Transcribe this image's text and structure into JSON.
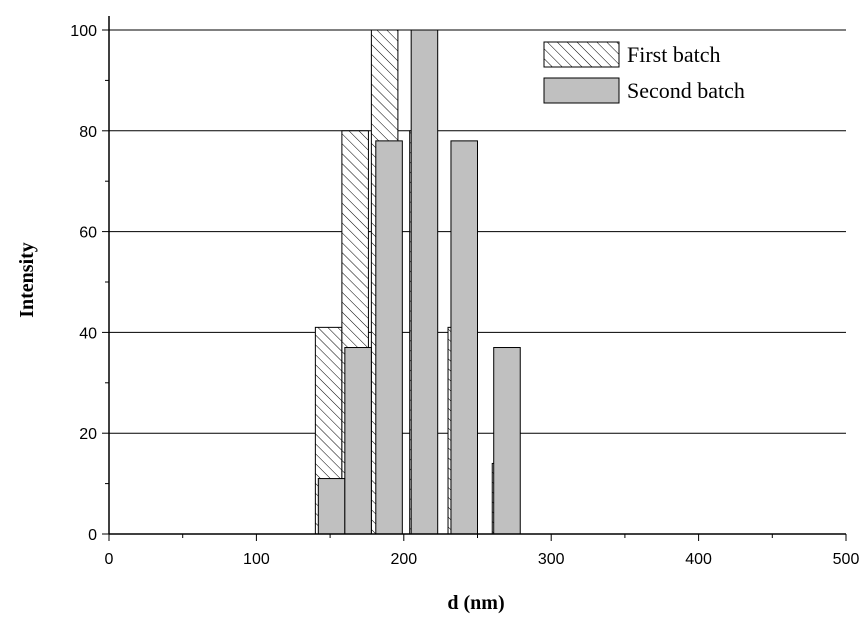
{
  "chart_data": {
    "type": "bar",
    "xlabel": "d (nm)",
    "ylabel": "Intensity",
    "xlim": [
      0,
      500
    ],
    "ylim": [
      0,
      100
    ],
    "x_ticks": [
      "0",
      "100",
      "200",
      "300",
      "400",
      "500"
    ],
    "y_ticks": [
      "0",
      "20",
      "40",
      "60",
      "80",
      "100"
    ],
    "grid": "horizontal",
    "legend_position": "top-right",
    "series": [
      {
        "name": "First batch",
        "pattern": "diagonal-hatch",
        "x_ranges": [
          [
            140,
            158
          ],
          [
            158,
            176
          ],
          [
            178,
            196
          ],
          [
            204,
            222
          ],
          [
            230,
            248
          ],
          [
            260,
            278
          ]
        ],
        "values": [
          41,
          80,
          100,
          80,
          41,
          14
        ]
      },
      {
        "name": "Second batch",
        "fill_color": "#c0c0c0",
        "x_ranges": [
          [
            142,
            160
          ],
          [
            160,
            178
          ],
          [
            181,
            199
          ],
          [
            205,
            223
          ],
          [
            232,
            250
          ],
          [
            261,
            279
          ]
        ],
        "values": [
          11,
          37,
          78,
          100,
          78,
          37
        ]
      }
    ]
  }
}
